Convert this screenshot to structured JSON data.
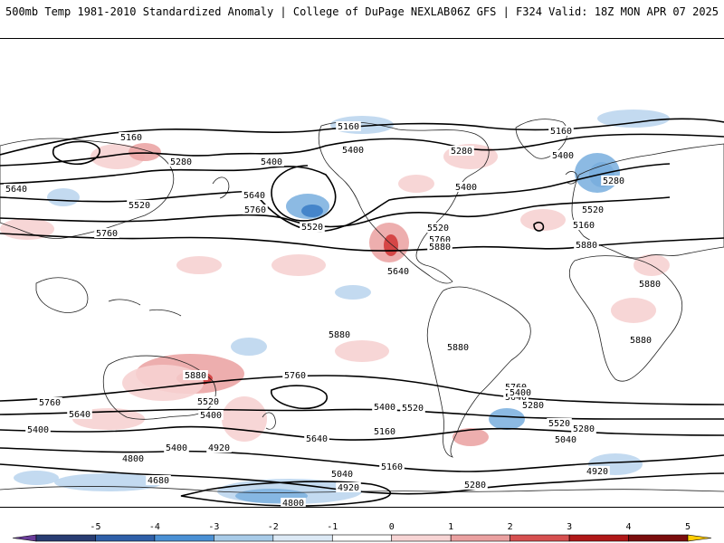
{
  "header": {
    "left_title": "500mb Temp 1981-2010 Standardized Anomaly | College of DuPage NEXLAB",
    "right_title": "06Z GFS | F324 Valid: 18Z MON APR 07 2025"
  },
  "contour_labels": [
    "5160",
    "5160",
    "5160",
    "5280",
    "5280",
    "5280",
    "5400",
    "5400",
    "5400",
    "5400",
    "5400",
    "5640",
    "5640",
    "5520",
    "5520",
    "5520",
    "5520",
    "5760",
    "5760",
    "5760",
    "5640",
    "5760",
    "5880",
    "5880",
    "5880",
    "5880",
    "5880",
    "5880",
    "5880",
    "5760",
    "5640",
    "5520",
    "5400",
    "5400",
    "5520",
    "5280",
    "5160",
    "4920",
    "4800",
    "4680",
    "4800",
    "4920",
    "5040",
    "5160",
    "5280",
    "5400",
    "5520",
    "5640",
    "5760",
    "5400",
    "5280",
    "5040",
    "4920",
    "5640",
    "5160"
  ],
  "colorbar": {
    "ticks": [
      "-5",
      "-4",
      "-3",
      "-2",
      "-1",
      "0",
      "1",
      "2",
      "3",
      "4",
      "5"
    ],
    "colors": [
      "#6a3d9a",
      "#283c72",
      "#2f5fa8",
      "#4a90d4",
      "#a8cbe8",
      "#dce9f5",
      "#ffffff",
      "#f7d4d4",
      "#eaa0a0",
      "#d65050",
      "#b01818",
      "#7a0d0d",
      "#ffcc00"
    ]
  },
  "anomaly_colors": {
    "blue_light": "#bcd6ee",
    "blue_mid": "#7fb3e0",
    "blue_dark": "#3d7fc6",
    "red_light": "#f6d2d2",
    "red_mid": "#eba5a5",
    "red_dark": "#d23b3b"
  }
}
